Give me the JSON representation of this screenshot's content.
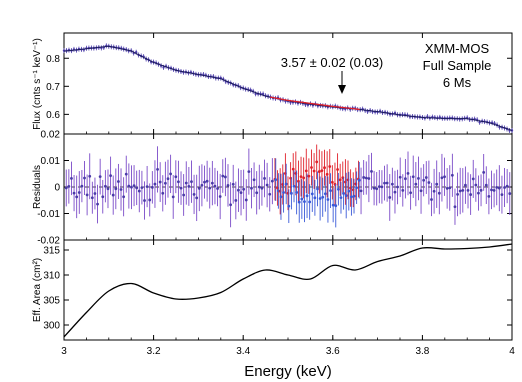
{
  "chart_data": {
    "type": "line",
    "xlabel": "Energy (keV)",
    "xlim": [
      3.0,
      4.0
    ],
    "xticks": [
      3,
      3.2,
      3.4,
      3.6,
      3.8,
      4
    ],
    "xtick_labels": [
      "3",
      "3.2",
      "3.4",
      "3.6",
      "3.8",
      "4"
    ],
    "series_colors": {
      "data": "#4a3aa8",
      "model": "#e0202a",
      "residual_red": "#e0202a",
      "residual_blue": "#3a5ad8",
      "area": "#000000"
    },
    "panels": [
      {
        "name": "flux",
        "ylabel": "Flux (cnts s⁻¹ keV⁻¹)",
        "ylim": [
          0.53,
          0.89
        ],
        "yticks": [
          0.6,
          0.7,
          0.8
        ],
        "ytick_labels": [
          "0.6",
          "0.7",
          "0.8"
        ],
        "annotations": {
          "line": "3.57 ± 0.02 (0.03)",
          "label_lines": [
            "XMM-MOS",
            "Full Sample",
            "6 Ms"
          ]
        },
        "annotation_arrow_x": 3.57,
        "model_bump_range": [
          3.46,
          3.66
        ],
        "x": [
          3.0,
          3.05,
          3.1,
          3.15,
          3.2,
          3.25,
          3.3,
          3.35,
          3.4,
          3.45,
          3.5,
          3.55,
          3.6,
          3.65,
          3.7,
          3.75,
          3.8,
          3.85,
          3.9,
          3.95,
          4.0
        ],
        "y": [
          0.825,
          0.834,
          0.843,
          0.826,
          0.785,
          0.757,
          0.742,
          0.727,
          0.693,
          0.665,
          0.648,
          0.636,
          0.626,
          0.619,
          0.61,
          0.598,
          0.589,
          0.585,
          0.585,
          0.57,
          0.543
        ]
      },
      {
        "name": "residuals",
        "ylabel": "Residuals",
        "ylim": [
          -0.02,
          0.02
        ],
        "yticks": [
          -0.02,
          -0.01,
          0,
          0.01,
          0.02
        ],
        "ytick_labels": [
          "-0.02",
          "-0.01",
          "0",
          "0.01",
          "0.02"
        ]
      },
      {
        "name": "area",
        "ylabel": "Eff. Area (cm²)",
        "ylim": [
          297,
          317
        ],
        "yticks": [
          300,
          305,
          310,
          315
        ],
        "ytick_labels": [
          "300",
          "305",
          "310",
          "315"
        ],
        "x": [
          3.0,
          3.05,
          3.1,
          3.15,
          3.2,
          3.25,
          3.3,
          3.35,
          3.4,
          3.45,
          3.5,
          3.55,
          3.6,
          3.65,
          3.7,
          3.75,
          3.8,
          3.85,
          3.9,
          3.95,
          4.0
        ],
        "y": [
          297.6,
          302.5,
          306.8,
          308.3,
          306.4,
          305.2,
          305.4,
          306.5,
          309.2,
          311.0,
          310.0,
          309.2,
          311.9,
          311.0,
          312.7,
          313.8,
          315.4,
          315.2,
          315.3,
          315.6,
          316.2
        ]
      }
    ]
  }
}
